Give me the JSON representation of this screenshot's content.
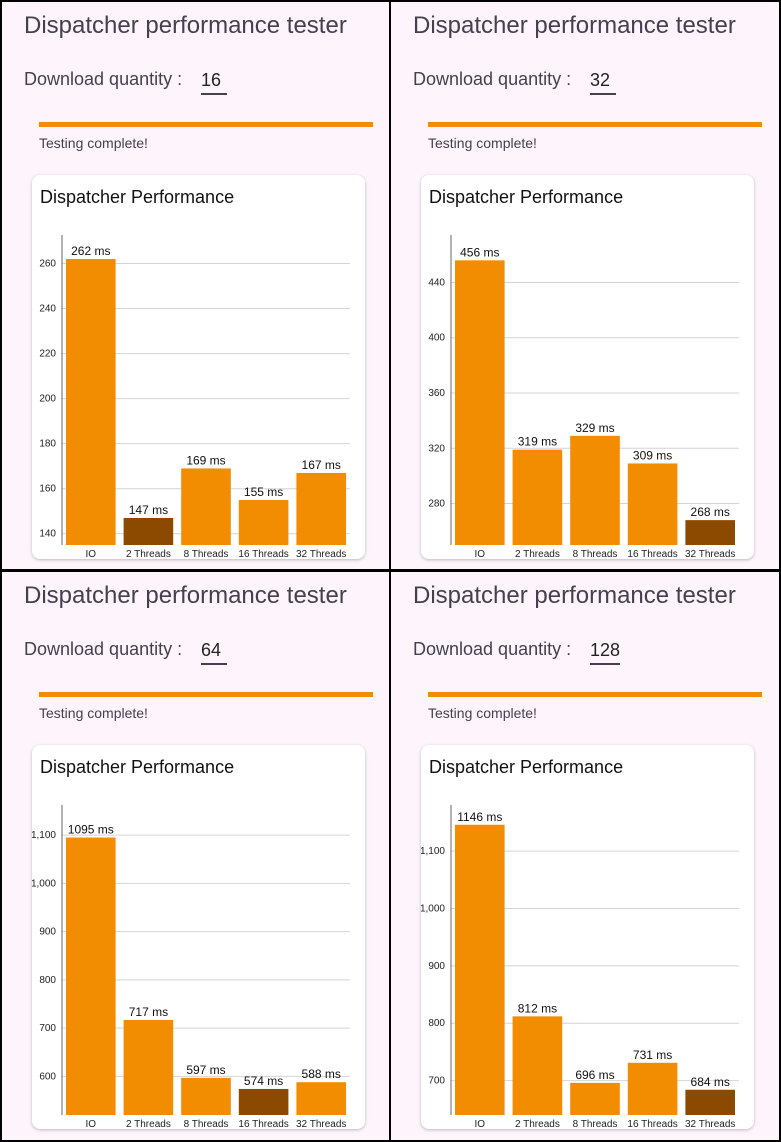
{
  "app": {
    "title": "Dispatcher performance tester",
    "quantity_label": "Download quantity :",
    "status": "Testing complete!",
    "chart_title": "Dispatcher Performance",
    "accent_color": "#f28c00",
    "best_color": "#8b4a00",
    "progress": 1.0
  },
  "panels": [
    {
      "quantity": "16"
    },
    {
      "quantity": "32"
    },
    {
      "quantity": "64"
    },
    {
      "quantity": "128"
    }
  ],
  "chart_data": [
    {
      "type": "bar",
      "title": "Dispatcher Performance",
      "categories": [
        "IO",
        "2 Threads",
        "8 Threads",
        "16 Threads",
        "32 Threads"
      ],
      "values": [
        262,
        147,
        169,
        155,
        167
      ],
      "data_labels": [
        "262 ms",
        "147 ms",
        "169 ms",
        "155 ms",
        "167 ms"
      ],
      "highlight_index": 1,
      "yticks": [
        140,
        160,
        180,
        200,
        220,
        240,
        260
      ],
      "ytick_labels": [
        "140",
        "160",
        "180",
        "200",
        "220",
        "240",
        "260"
      ],
      "ylim": [
        135,
        270
      ],
      "grid": true
    },
    {
      "type": "bar",
      "title": "Dispatcher Performance",
      "categories": [
        "IO",
        "2 Threads",
        "8 Threads",
        "16 Threads",
        "32 Threads"
      ],
      "values": [
        456,
        319,
        329,
        309,
        268
      ],
      "data_labels": [
        "456 ms",
        "319 ms",
        "329 ms",
        "309 ms",
        "268 ms"
      ],
      "highlight_index": 4,
      "yticks": [
        280,
        320,
        360,
        400,
        440
      ],
      "ytick_labels": [
        "280",
        "320",
        "360",
        "400",
        "440"
      ],
      "ylim": [
        250,
        470
      ],
      "grid": true
    },
    {
      "type": "bar",
      "title": "Dispatcher Performance",
      "categories": [
        "IO",
        "2 Threads",
        "8 Threads",
        "16 Threads",
        "32 Threads"
      ],
      "values": [
        1095,
        717,
        597,
        574,
        588
      ],
      "data_labels": [
        "1095 ms",
        "717 ms",
        "597 ms",
        "574 ms",
        "588 ms"
      ],
      "highlight_index": 3,
      "yticks": [
        600,
        700,
        800,
        900,
        1000,
        1100
      ],
      "ytick_labels": [
        "600",
        "700",
        "800",
        "900",
        "1,000",
        "1,100"
      ],
      "ylim": [
        520,
        1150
      ],
      "grid": true
    },
    {
      "type": "bar",
      "title": "Dispatcher Performance",
      "categories": [
        "IO",
        "2 Threads",
        "8 Threads",
        "16 Threads",
        "32 Threads"
      ],
      "values": [
        1146,
        812,
        696,
        731,
        684
      ],
      "data_labels": [
        "1146 ms",
        "812 ms",
        "696 ms",
        "731 ms",
        "684 ms"
      ],
      "highlight_index": 4,
      "yticks": [
        700,
        800,
        900,
        1000,
        1100
      ],
      "ytick_labels": [
        "700",
        "800",
        "900",
        "1,000",
        "1,100"
      ],
      "ylim": [
        640,
        1170
      ],
      "grid": true
    }
  ]
}
